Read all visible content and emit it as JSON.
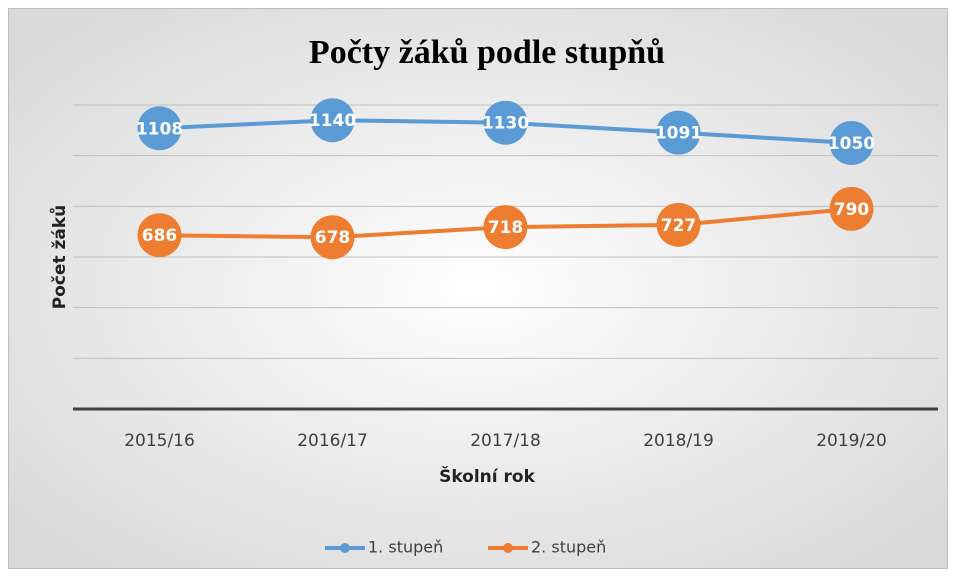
{
  "chart_data": {
    "type": "line",
    "title": "Počty žáků podle stupňů",
    "x_label": "Školní rok",
    "y_label": "Počet žáků",
    "categories": [
      "2015/16",
      "2016/17",
      "2017/18",
      "2018/19",
      "2019/20"
    ],
    "series": [
      {
        "name": "1. stupeň",
        "color": "#5b9bd5",
        "values": [
          1108,
          1140,
          1130,
          1091,
          1050
        ]
      },
      {
        "name": "2. stupeň",
        "color": "#ed7d31",
        "values": [
          686,
          678,
          718,
          727,
          790
        ]
      }
    ],
    "ylim": [
      0,
      1200
    ],
    "yticks": [
      0,
      200,
      400,
      600,
      800,
      1000,
      1200
    ],
    "grid": true,
    "legend": "bottom"
  }
}
